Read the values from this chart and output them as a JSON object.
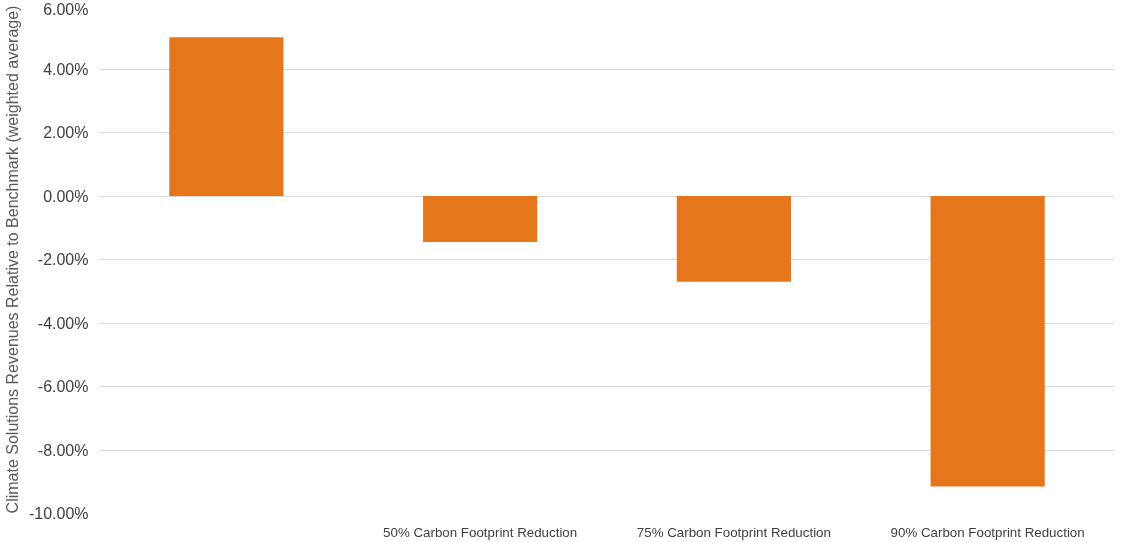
{
  "chart_data": {
    "type": "bar",
    "ylabel": "Climate Solutions Revenues Relative to Benchmark (weighted average)",
    "categories": [
      null,
      "50% Carbon Footprint Reduction",
      "75% Carbon Footprint Reduction",
      "90% Carbon Footprint Reduction"
    ],
    "series": [
      {
        "color": "#e5761c",
        "values": [
          5.0,
          -1.45,
          -2.7,
          -9.15
        ]
      }
    ],
    "ylim": [
      -10,
      6
    ],
    "yticks": [
      {
        "value": -10,
        "label": "-10.00%"
      },
      {
        "value": -8,
        "label": "-8.00%"
      },
      {
        "value": -6,
        "label": "-6.00%"
      },
      {
        "value": -4,
        "label": "-4.00%"
      },
      {
        "value": -2,
        "label": "-2.00%"
      },
      {
        "value": 0,
        "label": "0.00%"
      },
      {
        "value": 2,
        "label": "2.00%"
      },
      {
        "value": 4,
        "label": "4.00%"
      },
      {
        "value": 6,
        "label": "6.00%"
      }
    ],
    "grid": "y"
  }
}
